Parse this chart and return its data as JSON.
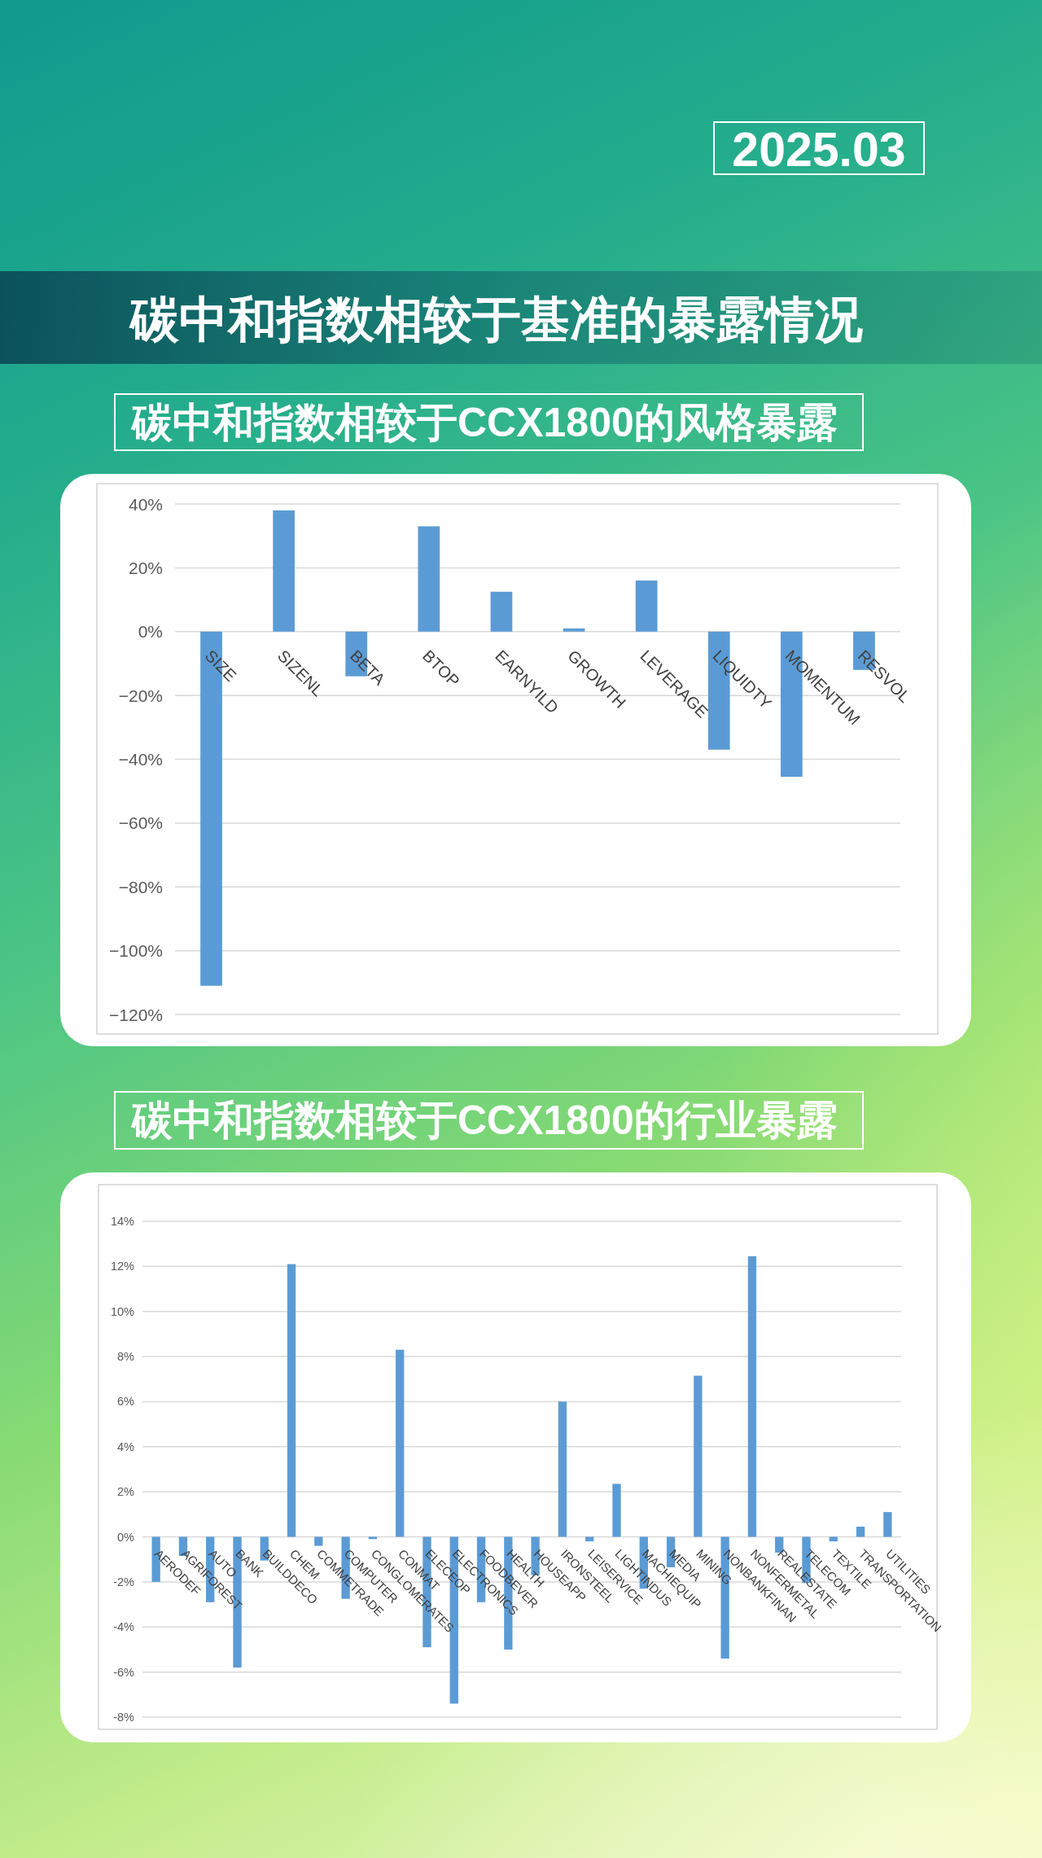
{
  "chart_data": [
    {
      "type": "other",
      "title": "碳中和指数相较于基准的暴露情况",
      "annotations": [
        "2025.03"
      ]
    },
    {
      "type": "bar",
      "title": "碳中和指数相较于CCX1800的风格暴露",
      "categories": [
        "SIZE",
        "SIZENL",
        "BETA",
        "BTOP",
        "EARNYILD",
        "GROWTH",
        "LEVERAGE",
        "LIQUIDTY",
        "MOMENTUM",
        "RESVOL"
      ],
      "values": [
        -111,
        38,
        -14,
        33,
        12.5,
        1,
        16,
        -37,
        -45.5,
        -12
      ],
      "color": "#5b9bd5",
      "ylim": [
        -120,
        40
      ],
      "yticks": [
        {
          "value": -120,
          "label": "−120%"
        },
        {
          "value": -100,
          "label": "−100%"
        },
        {
          "value": -80,
          "label": "−80%"
        },
        {
          "value": -60,
          "label": "−60%"
        },
        {
          "value": -40,
          "label": "−40%"
        },
        {
          "value": -20,
          "label": "−20%"
        },
        {
          "value": 0,
          "label": "0%"
        },
        {
          "value": 20,
          "label": "20%"
        },
        {
          "value": 40,
          "label": "40%"
        }
      ],
      "grid": "y"
    },
    {
      "type": "bar",
      "title": "碳中和指数相较于CCX1800的行业暴露",
      "categories": [
        "AERODEF",
        "AGRIFOREST",
        "AUTO",
        "BANK",
        "BUILDDECO",
        "CHEM",
        "COMMETRADE",
        "COMPUTER",
        "CONGLOMERATES",
        "CONMAT",
        "ELECEOP",
        "ELECTRONICS",
        "FOODBEVER",
        "HEALTH",
        "HOUSEAPP",
        "IRONSTEEL",
        "LEISERVICE",
        "LIGHTINDUS",
        "MACHIEQUIP",
        "MEDIA",
        "MINING",
        "NONBANKFINAN",
        "NONFERMETAL",
        "REALESTATE",
        "TELECOM",
        "TEXTILE",
        "TRANSPORTATION",
        "UTILITIES"
      ],
      "values": [
        -2.0,
        -0.85,
        -2.9,
        -5.8,
        -1.05,
        12.1,
        -0.4,
        -2.75,
        -0.1,
        8.3,
        -4.9,
        -7.4,
        -2.9,
        -5.0,
        -1.7,
        6.0,
        -0.2,
        2.35,
        -2.3,
        -1.35,
        7.15,
        -5.4,
        12.45,
        -0.7,
        -2.05,
        -0.2,
        0.45,
        1.1
      ],
      "color": "#5b9bd5",
      "ylim": [
        -8,
        14
      ],
      "yticks": [
        {
          "value": -8,
          "label": "-8%"
        },
        {
          "value": -6,
          "label": "-6%"
        },
        {
          "value": -4,
          "label": "-4%"
        },
        {
          "value": -2,
          "label": "-2%"
        },
        {
          "value": 0,
          "label": "0%"
        },
        {
          "value": 2,
          "label": "2%"
        },
        {
          "value": 4,
          "label": "4%"
        },
        {
          "value": 6,
          "label": "6%"
        },
        {
          "value": 8,
          "label": "8%"
        },
        {
          "value": 10,
          "label": "10%"
        },
        {
          "value": 12,
          "label": "12%"
        },
        {
          "value": 14,
          "label": "14%"
        }
      ],
      "grid": "y"
    }
  ]
}
